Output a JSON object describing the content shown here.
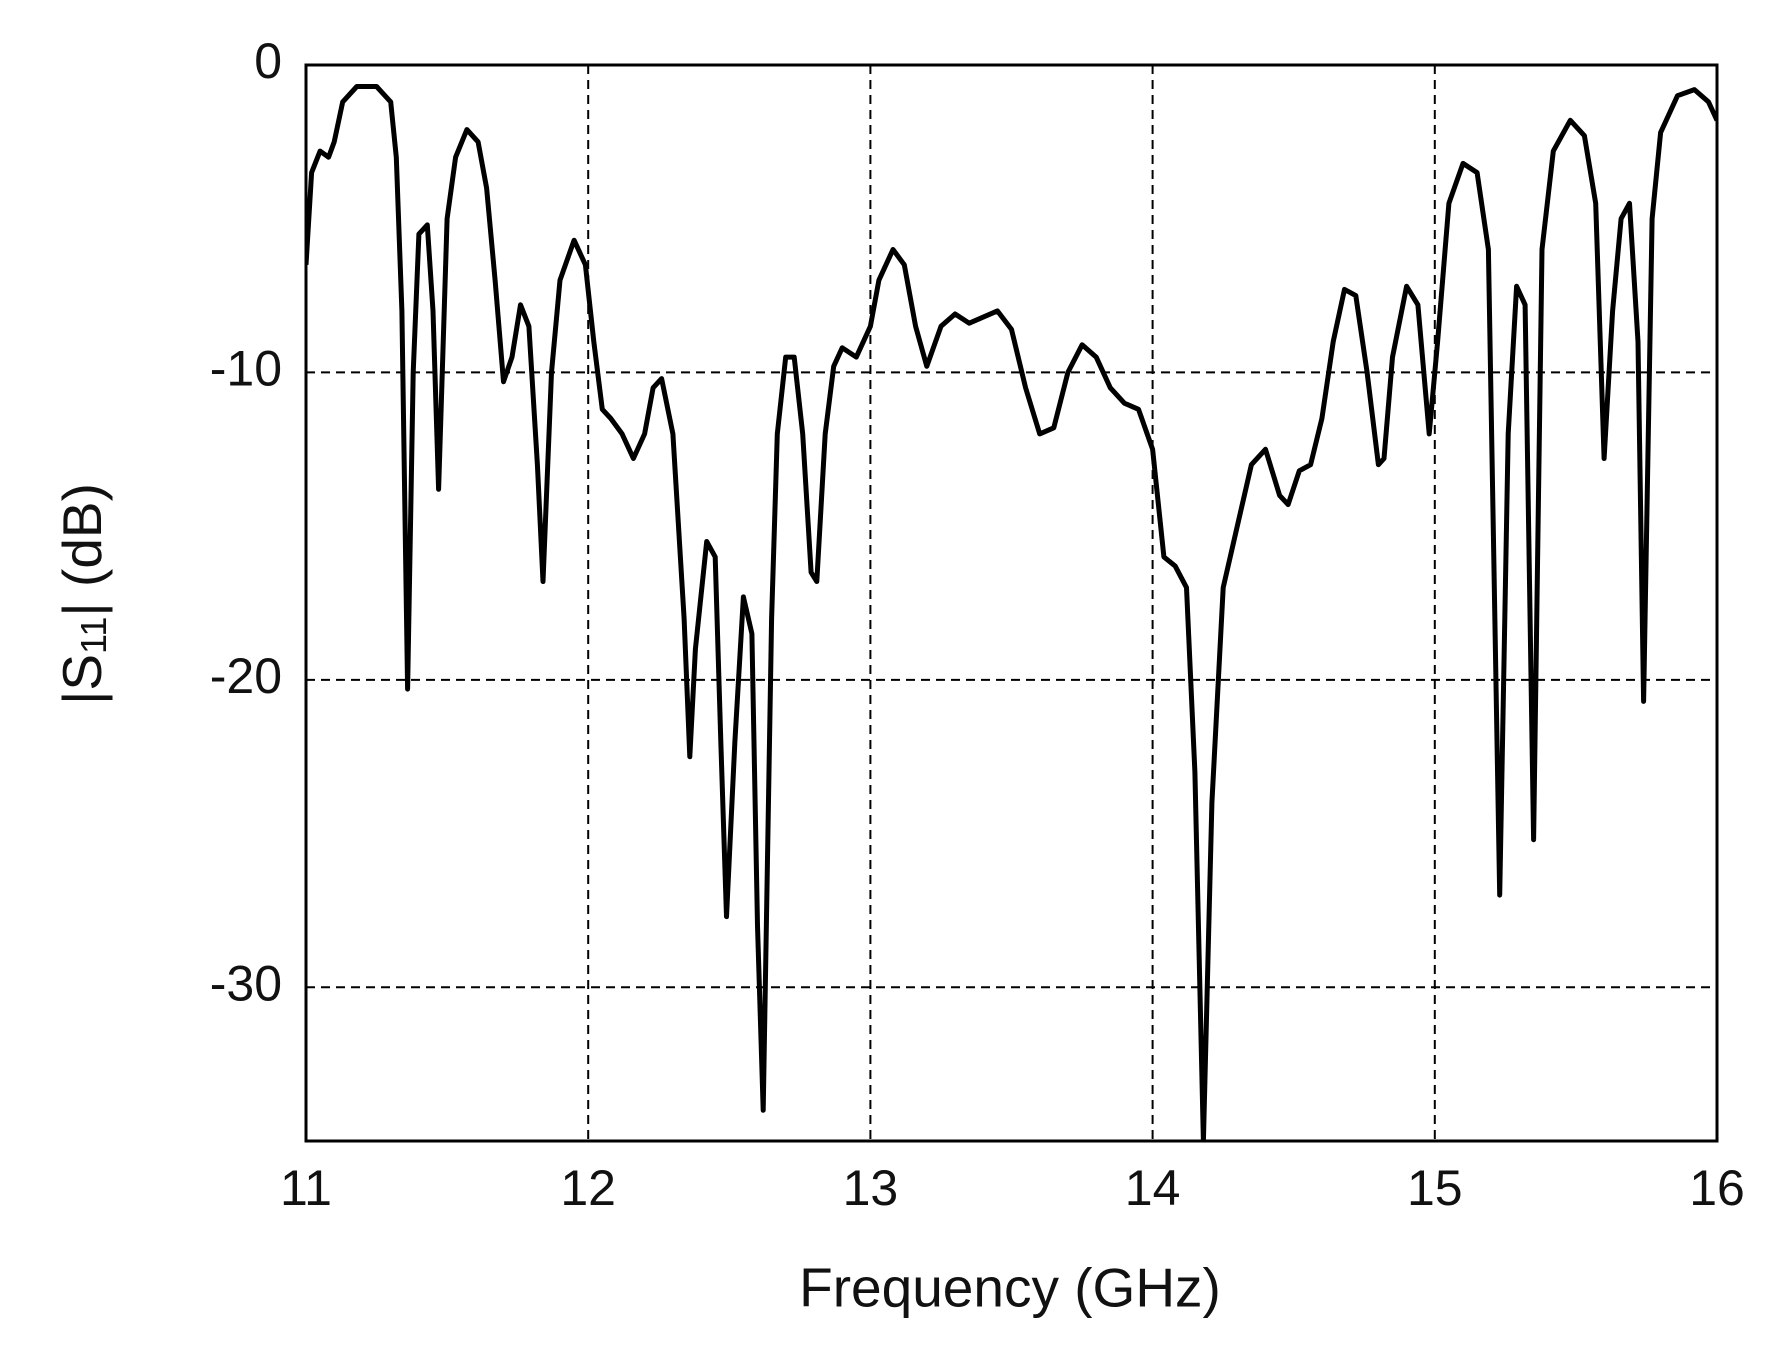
{
  "chart_data": {
    "type": "line",
    "xlabel": "Frequency  (GHz)",
    "ylabel": [
      "|S",
      "11",
      "|  (dB)"
    ],
    "xlim": [
      11,
      16
    ],
    "xticks": [
      11,
      12,
      13,
      14,
      15,
      16
    ],
    "ylim": [
      -35,
      0
    ],
    "yticks": [
      0,
      -10,
      -20,
      -30
    ],
    "grid": true,
    "x": [
      11.0,
      11.02,
      11.05,
      11.08,
      11.1,
      11.13,
      11.18,
      11.25,
      11.3,
      11.32,
      11.34,
      11.36,
      11.38,
      11.4,
      11.43,
      11.45,
      11.47,
      11.5,
      11.53,
      11.57,
      11.61,
      11.64,
      11.67,
      11.7,
      11.73,
      11.76,
      11.79,
      11.82,
      11.84,
      11.87,
      11.9,
      11.95,
      11.99,
      12.02,
      12.05,
      12.08,
      12.12,
      12.16,
      12.2,
      12.23,
      12.26,
      12.3,
      12.34,
      12.36,
      12.38,
      12.42,
      12.45,
      12.47,
      12.49,
      12.52,
      12.55,
      12.58,
      12.6,
      12.62,
      12.65,
      12.67,
      12.7,
      12.73,
      12.76,
      12.79,
      12.81,
      12.84,
      12.87,
      12.9,
      12.95,
      13.0,
      13.03,
      13.08,
      13.12,
      13.16,
      13.2,
      13.25,
      13.3,
      13.35,
      13.4,
      13.45,
      13.5,
      13.55,
      13.6,
      13.65,
      13.7,
      13.75,
      13.8,
      13.85,
      13.9,
      13.95,
      14.0,
      14.04,
      14.08,
      14.12,
      14.15,
      14.18,
      14.21,
      14.25,
      14.3,
      14.35,
      14.4,
      14.45,
      14.48,
      14.52,
      14.56,
      14.6,
      14.64,
      14.68,
      14.72,
      14.76,
      14.8,
      14.82,
      14.85,
      14.9,
      14.94,
      14.98,
      15.01,
      15.05,
      15.1,
      15.15,
      15.19,
      15.23,
      15.26,
      15.29,
      15.32,
      15.35,
      15.38,
      15.42,
      15.48,
      15.53,
      15.57,
      15.6,
      15.63,
      15.66,
      15.69,
      15.72,
      15.74,
      15.77,
      15.8,
      15.86,
      15.92,
      15.97,
      16.0
    ],
    "series": [
      {
        "color": "#000000",
        "values": [
          -6.5,
          -3.5,
          -2.8,
          -3.0,
          -2.5,
          -1.2,
          -0.7,
          -0.7,
          -1.2,
          -3,
          -8,
          -20.3,
          -10,
          -5.5,
          -5.2,
          -8,
          -13.8,
          -5,
          -3,
          -2.1,
          -2.5,
          -4,
          -7,
          -10.3,
          -9.5,
          -7.8,
          -8.5,
          -13,
          -16.8,
          -10,
          -7,
          -5.7,
          -6.5,
          -9,
          -11.2,
          -11.5,
          -12,
          -12.8,
          -12,
          -10.5,
          -10.2,
          -12,
          -18,
          -22.5,
          -19,
          -15.5,
          -16,
          -22,
          -27.7,
          -22,
          -17.3,
          -18.5,
          -28,
          -34,
          -18,
          -12,
          -9.5,
          -9.5,
          -12,
          -16.5,
          -16.8,
          -12,
          -9.8,
          -9.2,
          -9.5,
          -8.5,
          -7,
          -6,
          -6.5,
          -8.5,
          -9.8,
          -8.5,
          -8.1,
          -8.4,
          -8.2,
          -8.0,
          -8.6,
          -10.5,
          -12,
          -11.8,
          -10,
          -9.1,
          -9.5,
          -10.5,
          -11,
          -11.2,
          -12.5,
          -16,
          -16.3,
          -17,
          -23,
          -35,
          -24,
          -17,
          -15,
          -13,
          -12.5,
          -14,
          -14.3,
          -13.2,
          -13,
          -11.5,
          -9,
          -7.3,
          -7.5,
          -10,
          -13,
          -12.8,
          -9.5,
          -7.2,
          -7.8,
          -12,
          -9,
          -4.5,
          -3.2,
          -3.5,
          -6,
          -27,
          -12,
          -7.2,
          -7.8,
          -25.2,
          -6,
          -2.8,
          -1.8,
          -2.3,
          -4.5,
          -12.8,
          -8,
          -5,
          -4.5,
          -9,
          -20.7,
          -5,
          -2.2,
          -1,
          -0.8,
          -1.2,
          -1.8
        ]
      }
    ]
  }
}
